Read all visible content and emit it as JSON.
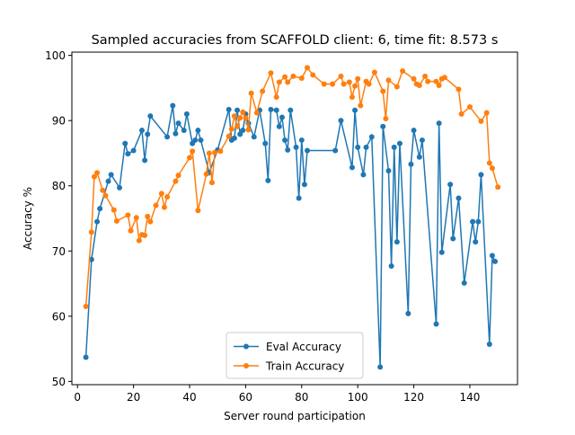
{
  "chart_data": {
    "type": "line",
    "title": "Sampled accuracies from SCAFFOLD client: 6, time fit: 8.573 s",
    "xlabel": "Server round participation",
    "ylabel": "Accuracy %",
    "xlim": [
      -2,
      157
    ],
    "ylim": [
      49.5,
      100.5
    ],
    "xticks": [
      0,
      20,
      40,
      60,
      80,
      100,
      120,
      140
    ],
    "yticks": [
      50,
      60,
      70,
      80,
      90,
      100
    ],
    "grid": false,
    "legend_position": "bottom-center",
    "series": [
      {
        "name": "Eval Accuracy",
        "color": "#1f77b4",
        "points": [
          [
            3,
            53.7
          ],
          [
            5,
            68.7
          ],
          [
            7,
            74.5
          ],
          [
            8,
            76.5
          ],
          [
            11,
            80.7
          ],
          [
            12,
            81.7
          ],
          [
            15,
            79.7
          ],
          [
            17,
            86.5
          ],
          [
            18,
            84.9
          ],
          [
            20,
            85.4
          ],
          [
            23,
            88.5
          ],
          [
            24,
            83.9
          ],
          [
            25,
            87.9
          ],
          [
            26,
            90.7
          ],
          [
            32,
            87.5
          ],
          [
            34,
            92.3
          ],
          [
            35,
            88.0
          ],
          [
            36,
            89.6
          ],
          [
            38,
            88.5
          ],
          [
            39,
            91.0
          ],
          [
            41,
            86.5
          ],
          [
            42,
            87.0
          ],
          [
            43,
            88.5
          ],
          [
            44,
            87.0
          ],
          [
            47,
            82.0
          ],
          [
            50,
            85.5
          ],
          [
            54,
            91.7
          ],
          [
            55,
            87.0
          ],
          [
            56,
            87.3
          ],
          [
            57,
            91.6
          ],
          [
            58,
            87.9
          ],
          [
            59,
            88.5
          ],
          [
            60,
            91.0
          ],
          [
            61,
            89.6
          ],
          [
            63,
            87.5
          ],
          [
            65,
            91.6
          ],
          [
            67,
            86.5
          ],
          [
            68,
            80.8
          ],
          [
            69,
            91.7
          ],
          [
            71,
            91.6
          ],
          [
            72,
            89.1
          ],
          [
            73,
            90.5
          ],
          [
            74,
            87.0
          ],
          [
            75,
            85.5
          ],
          [
            76,
            91.6
          ],
          [
            78,
            85.9
          ],
          [
            79,
            78.1
          ],
          [
            80,
            87.0
          ],
          [
            81,
            80.2
          ],
          [
            82,
            85.4
          ],
          [
            92,
            85.4
          ],
          [
            94,
            90.0
          ],
          [
            98,
            82.8
          ],
          [
            99,
            91.6
          ],
          [
            100,
            85.9
          ],
          [
            102,
            81.7
          ],
          [
            103,
            85.9
          ],
          [
            105,
            87.5
          ],
          [
            108,
            52.2
          ],
          [
            109,
            89.1
          ],
          [
            111,
            82.3
          ],
          [
            112,
            67.7
          ],
          [
            113,
            85.9
          ],
          [
            114,
            71.4
          ],
          [
            115,
            86.5
          ],
          [
            118,
            60.4
          ],
          [
            119,
            83.3
          ],
          [
            120,
            88.5
          ],
          [
            122,
            84.4
          ],
          [
            123,
            87.0
          ],
          [
            128,
            58.8
          ],
          [
            129,
            89.6
          ],
          [
            130,
            69.8
          ],
          [
            133,
            80.2
          ],
          [
            134,
            71.9
          ],
          [
            136,
            78.1
          ],
          [
            138,
            65.1
          ],
          [
            141,
            74.5
          ],
          [
            142,
            71.4
          ],
          [
            143,
            74.5
          ],
          [
            144,
            81.7
          ],
          [
            147,
            55.7
          ],
          [
            148,
            69.3
          ],
          [
            149,
            68.4
          ]
        ]
      },
      {
        "name": "Train Accuracy",
        "color": "#ff7f0e",
        "points": [
          [
            3,
            61.5
          ],
          [
            5,
            72.9
          ],
          [
            6,
            81.4
          ],
          [
            7,
            82.0
          ],
          [
            9,
            79.3
          ],
          [
            10,
            78.5
          ],
          [
            13,
            76.3
          ],
          [
            14,
            74.6
          ],
          [
            18,
            75.5
          ],
          [
            19,
            73.1
          ],
          [
            21,
            75.1
          ],
          [
            22,
            71.6
          ],
          [
            23,
            72.5
          ],
          [
            24,
            72.4
          ],
          [
            25,
            75.3
          ],
          [
            26,
            74.5
          ],
          [
            28,
            77.0
          ],
          [
            30,
            78.8
          ],
          [
            31,
            76.7
          ],
          [
            32,
            78.3
          ],
          [
            35,
            80.7
          ],
          [
            36,
            81.6
          ],
          [
            40,
            84.3
          ],
          [
            41,
            85.3
          ],
          [
            43,
            76.2
          ],
          [
            46,
            81.8
          ],
          [
            47,
            85.0
          ],
          [
            48,
            80.5
          ],
          [
            49,
            85.1
          ],
          [
            51,
            85.3
          ],
          [
            54,
            87.6
          ],
          [
            55,
            88.7
          ],
          [
            56,
            90.7
          ],
          [
            57,
            89.1
          ],
          [
            58,
            90.4
          ],
          [
            59,
            91.3
          ],
          [
            60,
            90.4
          ],
          [
            61,
            88.6
          ],
          [
            62,
            94.2
          ],
          [
            64,
            91.2
          ],
          [
            66,
            94.5
          ],
          [
            69,
            97.3
          ],
          [
            71,
            93.6
          ],
          [
            72,
            95.9
          ],
          [
            74,
            96.7
          ],
          [
            75,
            95.9
          ],
          [
            77,
            96.8
          ],
          [
            80,
            96.5
          ],
          [
            82,
            98.1
          ],
          [
            84,
            97.0
          ],
          [
            88,
            95.6
          ],
          [
            91,
            95.6
          ],
          [
            94,
            96.8
          ],
          [
            95,
            95.6
          ],
          [
            97,
            95.9
          ],
          [
            98,
            93.6
          ],
          [
            99,
            95.3
          ],
          [
            100,
            96.4
          ],
          [
            101,
            92.3
          ],
          [
            103,
            96.0
          ],
          [
            104,
            95.6
          ],
          [
            106,
            97.4
          ],
          [
            109,
            94.5
          ],
          [
            110,
            90.3
          ],
          [
            111,
            96.2
          ],
          [
            114,
            95.2
          ],
          [
            116,
            97.6
          ],
          [
            120,
            96.4
          ],
          [
            121,
            95.6
          ],
          [
            122,
            95.4
          ],
          [
            124,
            96.8
          ],
          [
            125,
            96.0
          ],
          [
            128,
            96.0
          ],
          [
            129,
            95.4
          ],
          [
            130,
            96.4
          ],
          [
            131,
            96.6
          ],
          [
            136,
            94.8
          ],
          [
            137,
            91.0
          ],
          [
            140,
            92.1
          ],
          [
            144,
            89.9
          ],
          [
            146,
            91.2
          ],
          [
            147,
            83.5
          ],
          [
            148,
            82.7
          ],
          [
            150,
            79.8
          ]
        ]
      }
    ]
  }
}
